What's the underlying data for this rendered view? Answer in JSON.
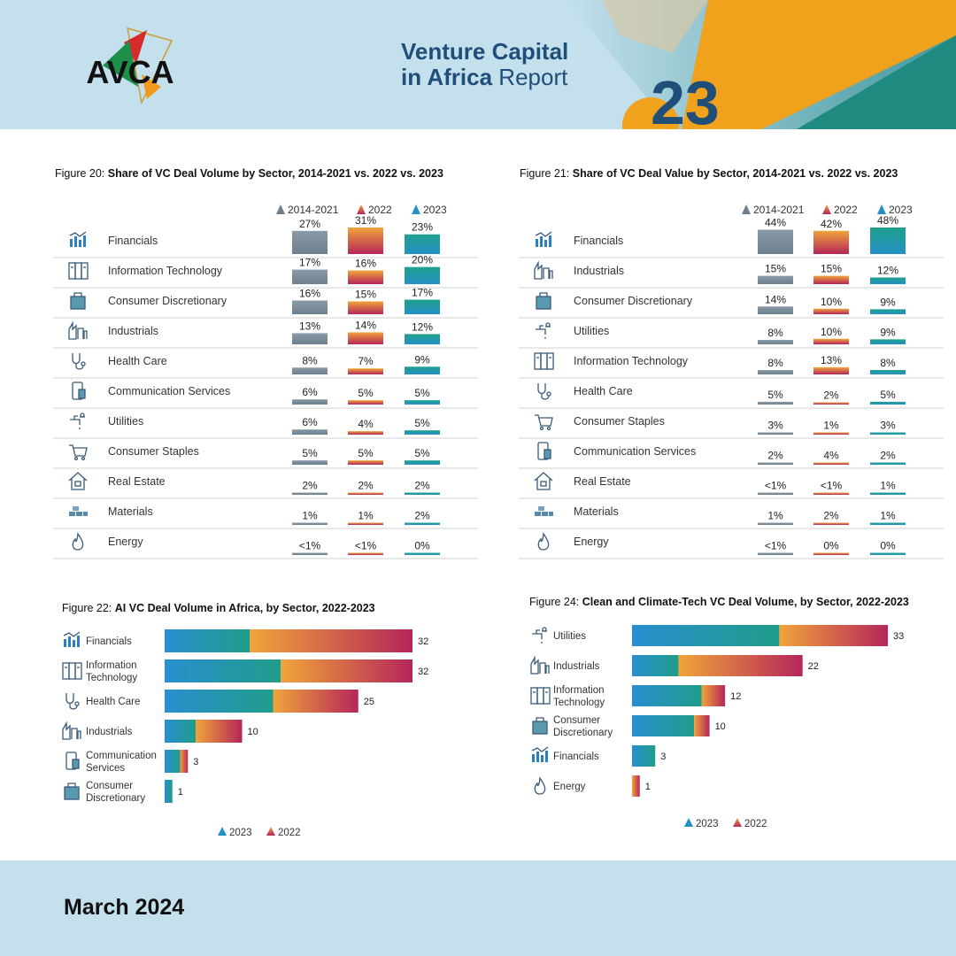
{
  "header": {
    "logo_text": "AVCA",
    "report_title_bold1": "Venture Capital",
    "report_title_bold2": "in Africa",
    "report_title_light": " Report",
    "year_graphic": "23"
  },
  "footer": {
    "date": "March 2024"
  },
  "colors": {
    "period_2014_2021": "#6d7f8e",
    "y2022_top": "#f0a43a",
    "y2022_bottom": "#b5265a",
    "y2023": "#2491c6",
    "header_bg": "#c3e0ec",
    "title_blue": "#1f4e79"
  },
  "chart_data": [
    {
      "id": "fig20",
      "type": "bar",
      "title_prefix": "Figure 20: ",
      "title": "Share of VC Deal Volume by Sector, 2014-2021 vs. 2022 vs. 2023",
      "legend": [
        "2014-2021",
        "2022",
        "2023"
      ],
      "legend_position": "top-right",
      "rows": [
        {
          "sector": "Financials",
          "icon": "financials-icon",
          "labels": [
            "27%",
            "31%",
            "23%"
          ],
          "values": [
            27,
            31,
            23
          ]
        },
        {
          "sector": "Information Technology",
          "icon": "server-icon",
          "labels": [
            "17%",
            "16%",
            "20%"
          ],
          "values": [
            17,
            16,
            20
          ]
        },
        {
          "sector": "Consumer Discretionary",
          "icon": "shopping-bag-icon",
          "labels": [
            "16%",
            "15%",
            "17%"
          ],
          "values": [
            16,
            15,
            17
          ]
        },
        {
          "sector": "Industrials",
          "icon": "factory-icon",
          "labels": [
            "13%",
            "14%",
            "12%"
          ],
          "values": [
            13,
            14,
            12
          ]
        },
        {
          "sector": "Health Care",
          "icon": "stethoscope-icon",
          "labels": [
            "8%",
            "7%",
            "9%"
          ],
          "values": [
            8,
            7,
            9
          ]
        },
        {
          "sector": "Communication Services",
          "icon": "phone-icon",
          "labels": [
            "6%",
            "5%",
            "5%"
          ],
          "values": [
            6,
            5,
            5
          ]
        },
        {
          "sector": "Utilities",
          "icon": "faucet-icon",
          "labels": [
            "6%",
            "4%",
            "5%"
          ],
          "values": [
            6,
            4,
            5
          ]
        },
        {
          "sector": "Consumer Staples",
          "icon": "cart-icon",
          "labels": [
            "5%",
            "5%",
            "5%"
          ],
          "values": [
            5,
            5,
            5
          ]
        },
        {
          "sector": "Real Estate",
          "icon": "house-icon",
          "labels": [
            "2%",
            "2%",
            "2%"
          ],
          "values": [
            2,
            2,
            2
          ]
        },
        {
          "sector": "Materials",
          "icon": "bricks-icon",
          "labels": [
            "1%",
            "1%",
            "2%"
          ],
          "values": [
            1,
            1,
            2
          ]
        },
        {
          "sector": "Energy",
          "icon": "flame-icon",
          "labels": [
            "<1%",
            "<1%",
            "0%"
          ],
          "values": [
            0.5,
            0.5,
            0
          ]
        }
      ]
    },
    {
      "id": "fig21",
      "type": "bar",
      "title_prefix": "Figure 21: ",
      "title": "Share of VC Deal Value by Sector, 2014-2021 vs. 2022 vs. 2023",
      "legend": [
        "2014-2021",
        "2022",
        "2023"
      ],
      "legend_position": "top-right",
      "rows": [
        {
          "sector": "Financials",
          "icon": "financials-icon",
          "labels": [
            "44%",
            "42%",
            "48%"
          ],
          "values": [
            44,
            42,
            48
          ]
        },
        {
          "sector": "Industrials",
          "icon": "factory-icon",
          "labels": [
            "15%",
            "15%",
            "12%"
          ],
          "values": [
            15,
            15,
            12
          ]
        },
        {
          "sector": "Consumer Discretionary",
          "icon": "shopping-bag-icon",
          "labels": [
            "14%",
            "10%",
            "9%"
          ],
          "values": [
            14,
            10,
            9
          ]
        },
        {
          "sector": "Utilities",
          "icon": "faucet-icon",
          "labels": [
            "8%",
            "10%",
            "9%"
          ],
          "values": [
            8,
            10,
            9
          ]
        },
        {
          "sector": "Information Technology",
          "icon": "server-icon",
          "labels": [
            "8%",
            "13%",
            "8%"
          ],
          "values": [
            8,
            13,
            8
          ]
        },
        {
          "sector": "Health Care",
          "icon": "stethoscope-icon",
          "labels": [
            "5%",
            "2%",
            "5%"
          ],
          "values": [
            5,
            2,
            5
          ]
        },
        {
          "sector": "Consumer Staples",
          "icon": "cart-icon",
          "labels": [
            "3%",
            "1%",
            "3%"
          ],
          "values": [
            3,
            1,
            3
          ]
        },
        {
          "sector": "Communication Services",
          "icon": "phone-icon",
          "labels": [
            "2%",
            "4%",
            "2%"
          ],
          "values": [
            2,
            4,
            2
          ]
        },
        {
          "sector": "Real Estate",
          "icon": "house-icon",
          "labels": [
            "<1%",
            "<1%",
            "1%"
          ],
          "values": [
            0.5,
            0.5,
            1
          ]
        },
        {
          "sector": "Materials",
          "icon": "bricks-icon",
          "labels": [
            "1%",
            "2%",
            "1%"
          ],
          "values": [
            1,
            2,
            1
          ]
        },
        {
          "sector": "Energy",
          "icon": "flame-icon",
          "labels": [
            "<1%",
            "0%",
            "0%"
          ],
          "values": [
            0.5,
            0,
            0
          ]
        }
      ]
    },
    {
      "id": "fig22",
      "type": "bar",
      "orientation": "horizontal",
      "stacked": true,
      "title_prefix": "Figure 22: ",
      "title": "AI VC Deal Volume in Africa, by Sector, 2022-2023",
      "legend": [
        "2023",
        "2022"
      ],
      "legend_position": "bottom-center",
      "rows": [
        {
          "sector": "Financials",
          "icon": "financials-icon",
          "v2023": 11,
          "v2022": 21,
          "total": 32
        },
        {
          "sector": "Information Technology",
          "icon": "server-icon",
          "v2023": 15,
          "v2022": 17,
          "total": 32
        },
        {
          "sector": "Health Care",
          "icon": "stethoscope-icon",
          "v2023": 14,
          "v2022": 11,
          "total": 25
        },
        {
          "sector": "Industrials",
          "icon": "factory-icon",
          "v2023": 4,
          "v2022": 6,
          "total": 10
        },
        {
          "sector": "Communication Services",
          "icon": "phone-icon",
          "v2023": 2,
          "v2022": 1,
          "total": 3
        },
        {
          "sector": "Consumer Discretionary",
          "icon": "shopping-bag-icon",
          "v2023": 1,
          "v2022": 0,
          "total": 1
        }
      ]
    },
    {
      "id": "fig24",
      "type": "bar",
      "orientation": "horizontal",
      "stacked": true,
      "title_prefix": "Figure 24: ",
      "title": "Clean and Climate-Tech VC Deal Volume, by Sector, 2022-2023",
      "legend": [
        "2023",
        "2022"
      ],
      "legend_position": "bottom-center",
      "rows": [
        {
          "sector": "Utilities",
          "icon": "faucet-icon",
          "v2023": 19,
          "v2022": 14,
          "total": 33
        },
        {
          "sector": "Industrials",
          "icon": "factory-icon",
          "v2023": 6,
          "v2022": 16,
          "total": 22
        },
        {
          "sector": "Information Technology",
          "icon": "server-icon",
          "v2023": 9,
          "v2022": 3,
          "total": 12
        },
        {
          "sector": "Consumer Discretionary",
          "icon": "shopping-bag-icon",
          "v2023": 8,
          "v2022": 2,
          "total": 10
        },
        {
          "sector": "Financials",
          "icon": "financials-icon",
          "v2023": 3,
          "v2022": 0,
          "total": 3
        },
        {
          "sector": "Energy",
          "icon": "flame-icon",
          "v2023": 0,
          "v2022": 1,
          "total": 1
        }
      ]
    }
  ]
}
